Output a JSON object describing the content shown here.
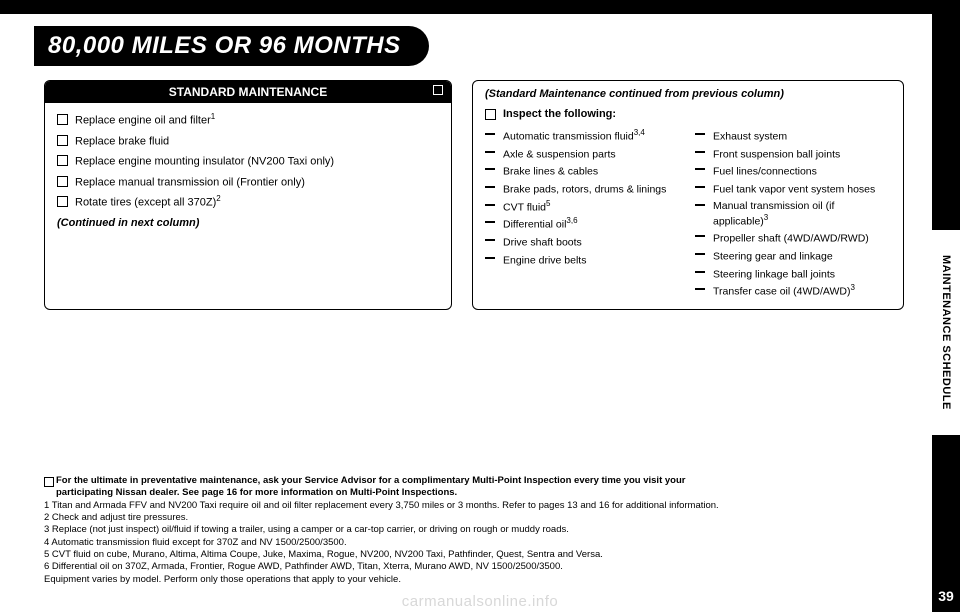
{
  "page": {
    "title": "80,000 MILES OR 96 MONTHS",
    "vtab": "MAINTENANCE SCHEDULE",
    "pagenum": "39",
    "watermark": "carmanualsonline.info"
  },
  "left_box": {
    "header": "STANDARD MAINTENANCE",
    "items": [
      {
        "text": "Replace engine oil and filter",
        "sup": "1"
      },
      {
        "text": "Replace brake fluid",
        "sup": ""
      },
      {
        "text": "Replace engine mounting insulator (NV200 Taxi only)",
        "sup": ""
      },
      {
        "text": "Replace manual transmission oil (Frontier only)",
        "sup": ""
      },
      {
        "text": "Rotate tires (except all 370Z)",
        "sup": "2"
      }
    ],
    "continued": "(Continued in next column)"
  },
  "right_box": {
    "continued_from": "(Standard Maintenance continued from previous column)",
    "inspect_header": "Inspect the following:",
    "col1": [
      {
        "text": "Automatic transmission fluid",
        "sup": "3,4"
      },
      {
        "text": "Axle & suspension parts",
        "sup": ""
      },
      {
        "text": "Brake lines & cables",
        "sup": ""
      },
      {
        "text": "Brake pads, rotors, drums & linings",
        "sup": ""
      },
      {
        "text": "CVT fluid",
        "sup": "5"
      },
      {
        "text": "Differential oil",
        "sup": "3,6"
      },
      {
        "text": "Drive shaft boots",
        "sup": ""
      },
      {
        "text": "Engine drive belts",
        "sup": ""
      }
    ],
    "col2": [
      {
        "text": "Exhaust system",
        "sup": ""
      },
      {
        "text": "Front suspension ball joints",
        "sup": ""
      },
      {
        "text": "Fuel lines/connections",
        "sup": ""
      },
      {
        "text": "Fuel tank vapor vent system hoses",
        "sup": ""
      },
      {
        "text": "Manual transmission oil (if applicable)",
        "sup": "3"
      },
      {
        "text": "Propeller shaft (4WD/AWD/RWD)",
        "sup": ""
      },
      {
        "text": "Steering gear and linkage",
        "sup": ""
      },
      {
        "text": "Steering linkage ball joints",
        "sup": ""
      },
      {
        "text": "Transfer case oil (4WD/AWD)",
        "sup": "3"
      }
    ]
  },
  "footnotes": {
    "lead1": "For the ultimate in preventative maintenance, ask your Service Advisor for a complimentary Multi-Point Inspection every time you visit your",
    "lead2": "participating Nissan dealer. See page 16 for more information on Multi-Point Inspections.",
    "notes": [
      "1 Titan and Armada FFV and NV200 Taxi require oil and oil filter replacement every 3,750 miles or 3 months. Refer to pages 13 and 16 for additional information.",
      "2 Check and adjust tire pressures.",
      "3 Replace (not just inspect) oil/fluid if towing a trailer, using a camper or a car-top carrier, or driving on rough or muddy roads.",
      "4 Automatic transmission fluid except for 370Z and NV 1500/2500/3500.",
      "5 CVT fluid on cube, Murano, Altima, Altima Coupe, Juke, Maxima, Rogue, NV200, NV200 Taxi, Pathfinder, Quest, Sentra and Versa.",
      "6 Differential oil on 370Z, Armada, Frontier, Rogue AWD, Pathfinder AWD, Titan, Xterra, Murano AWD, NV 1500/2500/3500.",
      "Equipment varies by model. Perform only those operations that apply to your vehicle."
    ]
  }
}
